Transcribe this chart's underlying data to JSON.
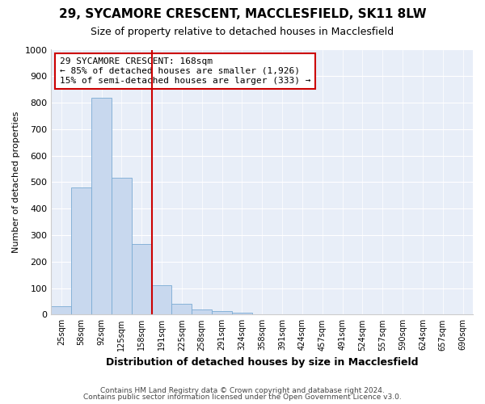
{
  "title": "29, SYCAMORE CRESCENT, MACCLESFIELD, SK11 8LW",
  "subtitle": "Size of property relative to detached houses in Macclesfield",
  "xlabel": "Distribution of detached houses by size in Macclesfield",
  "ylabel": "Number of detached properties",
  "footer1": "Contains HM Land Registry data © Crown copyright and database right 2024.",
  "footer2": "Contains public sector information licensed under the Open Government Licence v3.0.",
  "bar_labels": [
    "25sqm",
    "58sqm",
    "92sqm",
    "125sqm",
    "158sqm",
    "191sqm",
    "225sqm",
    "258sqm",
    "291sqm",
    "324sqm",
    "358sqm",
    "391sqm",
    "424sqm",
    "457sqm",
    "491sqm",
    "524sqm",
    "557sqm",
    "590sqm",
    "624sqm",
    "657sqm",
    "690sqm"
  ],
  "bar_values": [
    32,
    480,
    820,
    515,
    265,
    110,
    40,
    20,
    12,
    8,
    0,
    0,
    0,
    0,
    0,
    0,
    0,
    0,
    0,
    0,
    0
  ],
  "bar_color": "#c8d8ee",
  "bar_edge_color": "#7aabd4",
  "ylim": [
    0,
    1000
  ],
  "yticks": [
    0,
    100,
    200,
    300,
    400,
    500,
    600,
    700,
    800,
    900,
    1000
  ],
  "vline_color": "#cc0000",
  "annotation_line1": "29 SYCAMORE CRESCENT: 168sqm",
  "annotation_line2": "← 85% of detached houses are smaller (1,926)",
  "annotation_line3": "15% of semi-detached houses are larger (333) →",
  "annotation_box_color": "#ffffff",
  "annotation_border_color": "#cc0000",
  "fig_bg_color": "#ffffff",
  "plot_bg_color": "#e8eef8",
  "grid_color": "#ffffff",
  "title_fontsize": 11,
  "subtitle_fontsize": 9
}
